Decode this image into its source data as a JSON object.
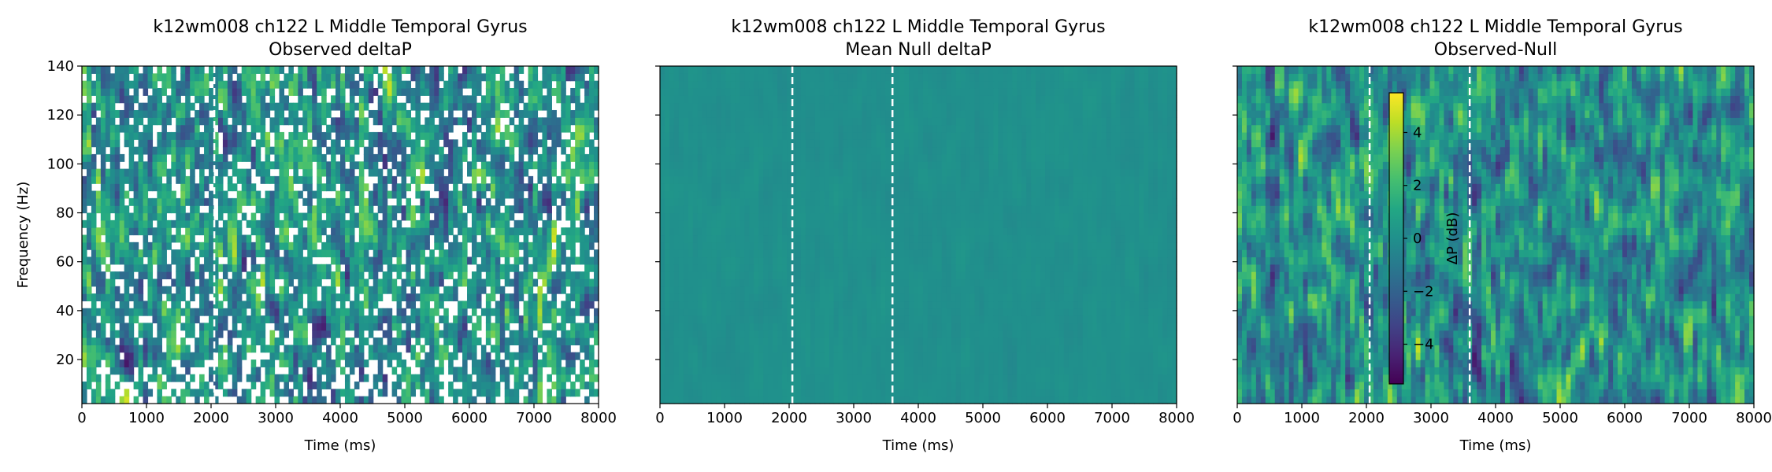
{
  "chart_data": [
    {
      "type": "heatmap",
      "title": "k12wm008 ch122 L Middle Temporal Gyrus",
      "subtitle": "Observed deltaP",
      "xlabel": "Time (ms)",
      "ylabel": "Frequency (Hz)",
      "xlim": [
        0,
        8000
      ],
      "ylim": [
        2,
        140
      ],
      "xticks": [
        0,
        1000,
        2000,
        3000,
        4000,
        5000,
        6000,
        7000,
        8000
      ],
      "yticks": [
        20,
        40,
        60,
        80,
        100,
        120,
        140
      ],
      "show_ytick_labels": true,
      "vlines_ms": [
        2050
      ],
      "colormap": "viridis",
      "color_range_db": [
        -5.5,
        5.5
      ],
      "masked": true
    },
    {
      "type": "heatmap",
      "title": "k12wm008 ch122 L Middle Temporal Gyrus",
      "subtitle": "Mean Null deltaP",
      "xlabel": "Time (ms)",
      "ylabel": "",
      "xlim": [
        0,
        8000
      ],
      "ylim": [
        2,
        140
      ],
      "xticks": [
        0,
        1000,
        2000,
        3000,
        4000,
        5000,
        6000,
        7000,
        8000
      ],
      "yticks": [
        20,
        40,
        60,
        80,
        100,
        120,
        140
      ],
      "show_ytick_labels": false,
      "vlines_ms": [
        2050,
        3600
      ],
      "colormap": "viridis",
      "color_range_db": [
        -5.5,
        5.5
      ],
      "masked": false
    },
    {
      "type": "heatmap",
      "title": "k12wm008 ch122 L Middle Temporal Gyrus",
      "subtitle": "Observed-Null",
      "xlabel": "Time (ms)",
      "ylabel": "",
      "xlim": [
        0,
        8000
      ],
      "ylim": [
        2,
        140
      ],
      "xticks": [
        0,
        1000,
        2000,
        3000,
        4000,
        5000,
        6000,
        7000,
        8000
      ],
      "yticks": [
        20,
        40,
        60,
        80,
        100,
        120,
        140
      ],
      "show_ytick_labels": false,
      "vlines_ms": [
        2050,
        3600
      ],
      "colormap": "viridis",
      "color_range_db": [
        -5.5,
        5.5
      ],
      "masked": false,
      "colorbar": {
        "label": "ΔP (dB)",
        "range": [
          -5.5,
          5.5
        ],
        "ticks": [
          -4,
          -2,
          0,
          2,
          4
        ],
        "tick_labels": [
          "−4",
          "−2",
          "0",
          "2",
          "4"
        ]
      }
    }
  ]
}
